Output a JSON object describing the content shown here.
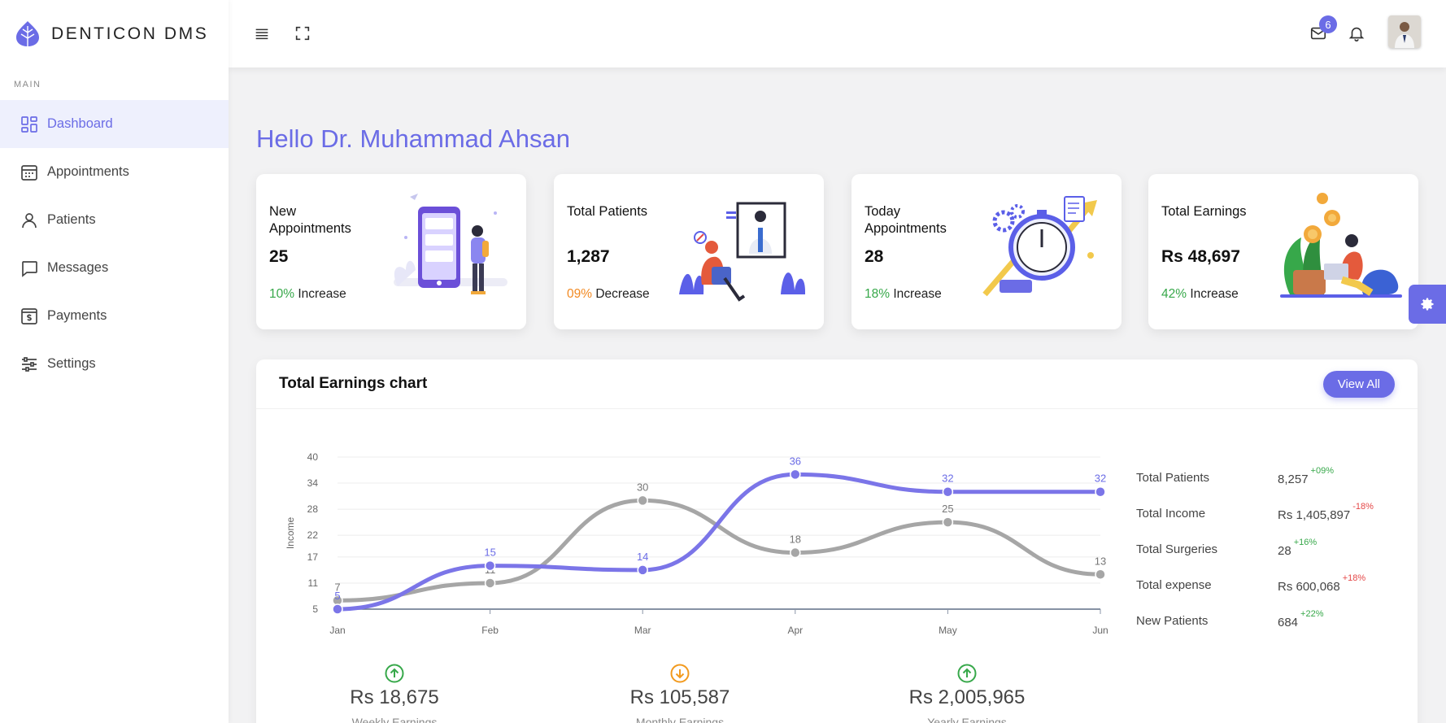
{
  "brand": {
    "name": "DENTICON DMS"
  },
  "sidebar": {
    "section": "MAIN",
    "items": [
      {
        "label": "Dashboard",
        "icon": "dashboard-icon",
        "active": true
      },
      {
        "label": "Appointments",
        "icon": "calendar-icon",
        "active": false
      },
      {
        "label": "Patients",
        "icon": "user-icon",
        "active": false
      },
      {
        "label": "Messages",
        "icon": "chat-icon",
        "active": false
      },
      {
        "label": "Payments",
        "icon": "payment-icon",
        "active": false
      },
      {
        "label": "Settings",
        "icon": "sliders-icon",
        "active": false
      }
    ]
  },
  "topbar": {
    "mail_badge": "6"
  },
  "greeting": "Hello Dr. Muhammad Ahsan",
  "cards": [
    {
      "title": "New Appointments",
      "value": "25",
      "pct": "10%",
      "trend": "Increase",
      "direction": "up"
    },
    {
      "title": "Total Patients",
      "value": "1,287",
      "pct": "09%",
      "trend": "Decrease",
      "direction": "down"
    },
    {
      "title": "Today Appointments",
      "value": "28",
      "pct": "18%",
      "trend": "Increase",
      "direction": "up"
    },
    {
      "title": "Total Earnings",
      "value": "Rs 48,697",
      "pct": "42%",
      "trend": "Increase",
      "direction": "up"
    }
  ],
  "chart_card": {
    "title": "Total Earnings chart",
    "view_all": "View All"
  },
  "chart_data": {
    "type": "line",
    "categories": [
      "Jan",
      "Feb",
      "Mar",
      "Apr",
      "May",
      "Jun"
    ],
    "ylabel": "Income",
    "yticks": [
      5,
      11,
      17,
      22,
      28,
      34,
      40
    ],
    "ylim": [
      5,
      40
    ],
    "series": [
      {
        "color": "#7b75e8",
        "values": [
          5,
          15,
          14,
          36,
          32,
          32
        ]
      },
      {
        "color": "#a6a6a6",
        "values": [
          7,
          11,
          30,
          18,
          25,
          13
        ]
      }
    ]
  },
  "summary": [
    {
      "label": "Total Patients",
      "value": "8,257",
      "change": "+09%",
      "direction": "up"
    },
    {
      "label": "Total Income",
      "value": "Rs 1,405,897",
      "change": "-18%",
      "direction": "down"
    },
    {
      "label": "Total Surgeries",
      "value": "28",
      "change": "+16%",
      "direction": "up"
    },
    {
      "label": "Total expense",
      "value": "Rs 600,068",
      "change": "+18%",
      "direction": "down"
    },
    {
      "label": "New Patients",
      "value": "684",
      "change": "+22%",
      "direction": "up"
    }
  ],
  "earnings": [
    {
      "value": "Rs 18,675",
      "label": "Weekly Earnings",
      "direction": "up",
      "color": "#37a84a"
    },
    {
      "value": "Rs 105,587",
      "label": "Monthly Earnings",
      "direction": "down",
      "color": "#f29a1e"
    },
    {
      "value": "Rs 2,005,965",
      "label": "Yearly Earnings",
      "direction": "up",
      "color": "#37a84a"
    }
  ],
  "colors": {
    "accent": "#6b6ce6",
    "up": "#37a84a",
    "down": "#f28a23"
  }
}
